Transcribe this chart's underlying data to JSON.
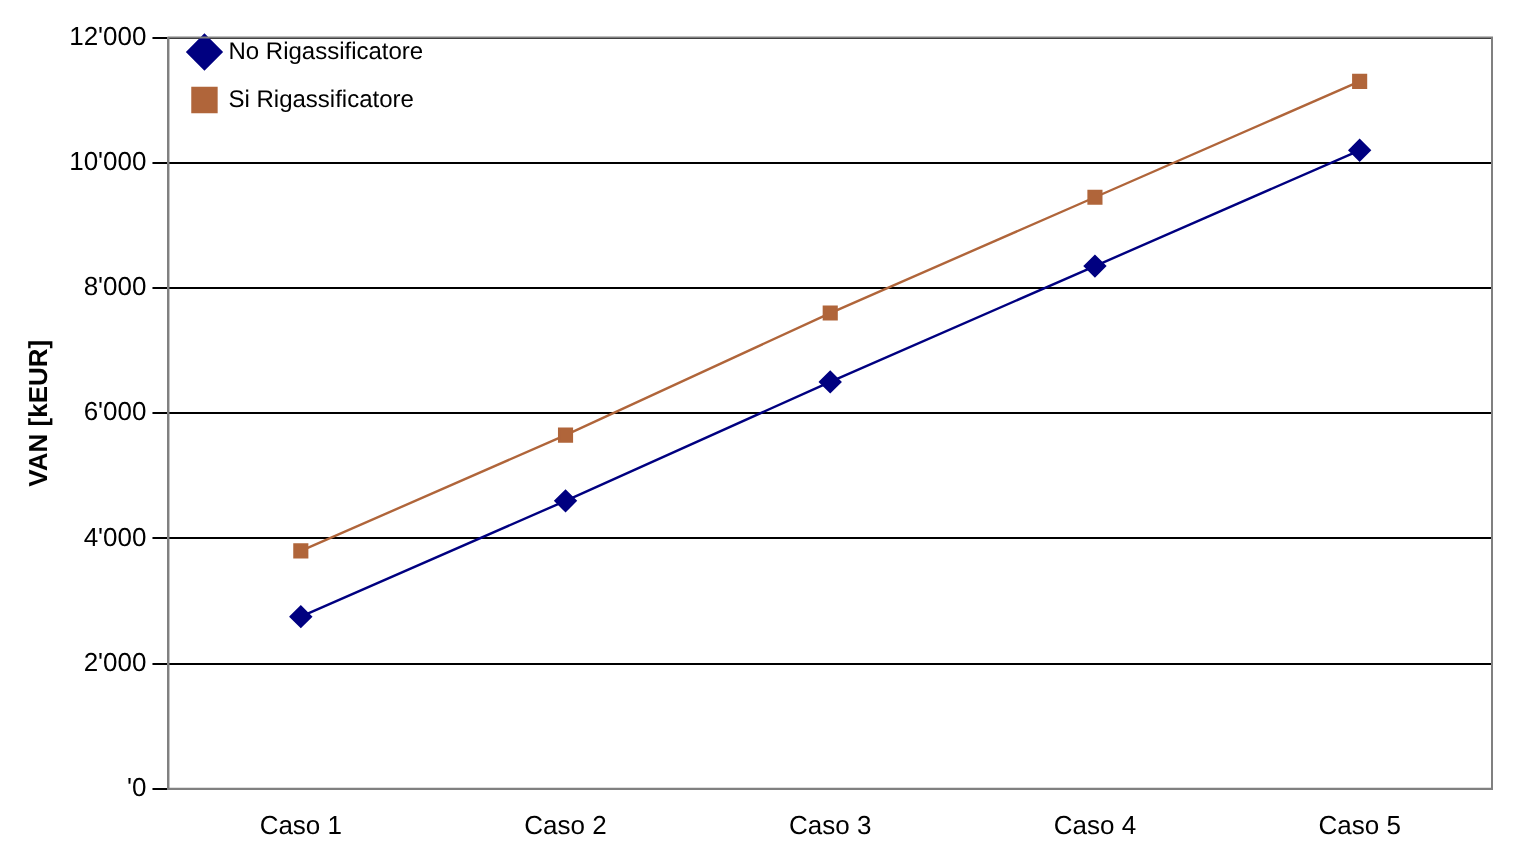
{
  "chart_data": {
    "type": "line",
    "ylabel": "VAN [kEUR]",
    "categories": [
      "Caso 1",
      "Caso 2",
      "Caso 3",
      "Caso 4",
      "Caso 5"
    ],
    "series": [
      {
        "name": "No Rigassificatore",
        "color": "#000080",
        "marker": "diamond",
        "values": [
          2750,
          4600,
          6500,
          8350,
          10200
        ]
      },
      {
        "name": "Si Rigassificatore",
        "color": "#b0653a",
        "marker": "square",
        "values": [
          3800,
          5650,
          7600,
          9450,
          11300
        ]
      }
    ],
    "ylim": [
      0,
      12000
    ],
    "yticks": [
      {
        "value": 0,
        "label": "'0"
      },
      {
        "value": 2000,
        "label": "2'000"
      },
      {
        "value": 4000,
        "label": "4'000"
      },
      {
        "value": 6000,
        "label": "6'000"
      },
      {
        "value": 8000,
        "label": "8'000"
      },
      {
        "value": 10000,
        "label": "10'000"
      },
      {
        "value": 12000,
        "label": "12'000"
      }
    ],
    "grid": "y",
    "legend": "top left",
    "line_style": "solid"
  }
}
